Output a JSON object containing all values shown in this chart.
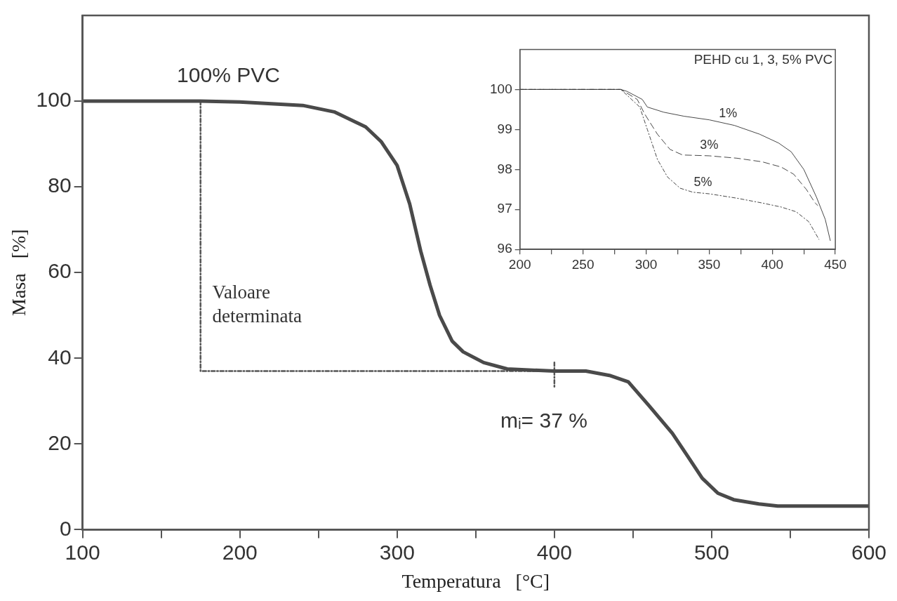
{
  "chart_data": [
    {
      "type": "line",
      "xlabel": "Temperatura   [°C]",
      "ylabel": "Masa   [%]",
      "xlim": [
        100,
        600
      ],
      "ylim": [
        0,
        120
      ],
      "xticks": [
        100,
        {
          "value": 150,
          "label": null
        },
        200,
        {
          "value": 250,
          "label": null
        },
        300,
        {
          "value": 350,
          "label": null
        },
        400,
        {
          "value": 450,
          "label": null
        },
        500,
        {
          "value": 550,
          "label": null
        },
        600
      ],
      "yticks": [
        0,
        20,
        40,
        60,
        80,
        100
      ],
      "grid": false,
      "legend": false,
      "marker": "none",
      "annotations": [
        "100% PVC",
        "Valoare determinata",
        {
          "text": "mᵢ= 37 %",
          "x": 400,
          "y": 37
        }
      ],
      "series": [
        {
          "color": "#4a4a4a",
          "x": [
            100,
            175,
            200,
            240,
            260,
            280,
            290,
            300,
            308,
            315,
            321,
            327,
            335,
            342,
            355,
            370,
            400,
            420,
            435,
            447,
            460,
            475,
            485,
            494,
            504,
            514,
            530,
            542,
            600
          ],
          "values": [
            100,
            100,
            99.8,
            99,
            97.5,
            94,
            90.5,
            85,
            76,
            65,
            57,
            50,
            44,
            41.5,
            39,
            37.5,
            37,
            37,
            36,
            34.5,
            29,
            22.5,
            17,
            12,
            8.5,
            7,
            6,
            5.5,
            5.5
          ]
        },
        {
          "color": "#555555",
          "line_style": "dotted",
          "x": [
            175,
            175,
            400
          ],
          "values": [
            100,
            37,
            37
          ]
        },
        {
          "color": "#555555",
          "line_style": "dotted",
          "x": [
            400,
            400
          ],
          "values": [
            39,
            33
          ]
        }
      ]
    },
    {
      "type": "line",
      "title": "PEHD cu 1, 3, 5% PVC",
      "xlim": [
        200,
        450
      ],
      "ylim": [
        96,
        101
      ],
      "xticks": [
        200,
        {
          "value": 225,
          "label": null
        },
        250,
        {
          "value": 275,
          "label": null
        },
        300,
        {
          "value": 325,
          "label": null
        },
        350,
        {
          "value": 375,
          "label": null
        },
        400,
        {
          "value": 425,
          "label": null
        },
        450
      ],
      "yticks": [
        96,
        97,
        98,
        99,
        100
      ],
      "grid": false,
      "legend": false,
      "marker": "none",
      "series": [
        {
          "name": "1%",
          "color": "#333333",
          "line_style": "solid",
          "x": [
            200,
            280,
            285,
            297,
            301,
            314,
            330,
            350,
            370,
            390,
            405,
            415,
            425,
            435,
            442,
            446
          ],
          "values": [
            100,
            100,
            99.95,
            99.75,
            99.56,
            99.43,
            99.33,
            99.24,
            99.1,
            98.88,
            98.66,
            98.44,
            98,
            97.31,
            96.75,
            96.22
          ]
        },
        {
          "name": "3%",
          "color": "#333333",
          "line_style": "dashed",
          "x": [
            200,
            280,
            293,
            299,
            309,
            319,
            329,
            350,
            372,
            392,
            407,
            417,
            427,
            434,
            436
          ],
          "values": [
            100,
            100,
            99.75,
            99.38,
            98.88,
            98.5,
            98.36,
            98.34,
            98.28,
            98.19,
            98.06,
            97.88,
            97.5,
            97.16,
            97.1
          ]
        },
        {
          "name": "5%",
          "color": "#333333",
          "line_style": "dotted",
          "x": [
            200,
            280,
            295,
            301,
            309,
            317,
            327,
            337,
            350,
            372,
            392,
            407,
            419,
            429,
            437
          ],
          "values": [
            100,
            100,
            99.56,
            99,
            98.25,
            97.81,
            97.53,
            97.43,
            97.39,
            97.28,
            97.16,
            97.06,
            96.94,
            96.69,
            96.25
          ]
        }
      ]
    }
  ]
}
